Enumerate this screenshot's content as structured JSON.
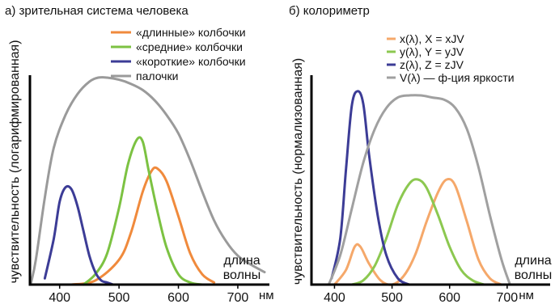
{
  "chart_data": [
    {
      "type": "line",
      "title": "а) зрительная система человека",
      "ylabel": "чувствительность (логарифмированная)",
      "xlabel": "длина волны",
      "xunit": "нм",
      "xlim": [
        350,
        790
      ],
      "ylim": [
        0,
        1
      ],
      "xticks": [
        400,
        500,
        600,
        700
      ],
      "legend_position": "top-right",
      "series": [
        {
          "name": "«длинные» колбочки",
          "color": "#f08a3c",
          "x": [
            420,
            460,
            500,
            520,
            540,
            555,
            565,
            580,
            600,
            620,
            640,
            660
          ],
          "y": [
            0,
            0.02,
            0.12,
            0.25,
            0.45,
            0.55,
            0.56,
            0.5,
            0.33,
            0.15,
            0.05,
            0.01
          ]
        },
        {
          "name": "«средние» колбочки",
          "color": "#7cc242",
          "x": [
            440,
            460,
            480,
            500,
            515,
            530,
            540,
            550,
            565,
            580,
            600,
            620,
            640
          ],
          "y": [
            0,
            0.05,
            0.15,
            0.37,
            0.58,
            0.7,
            0.69,
            0.55,
            0.35,
            0.18,
            0.05,
            0.01,
            0
          ]
        },
        {
          "name": "«короткие» колбочки",
          "color": "#3c3c96",
          "x": [
            375,
            390,
            400,
            410,
            420,
            430,
            440,
            450,
            460,
            470,
            480,
            490
          ],
          "y": [
            0.03,
            0.22,
            0.4,
            0.47,
            0.46,
            0.38,
            0.26,
            0.14,
            0.06,
            0.02,
            0.01,
            0
          ]
        },
        {
          "name": "палочки",
          "color": "#9a9a9a",
          "x": [
            352,
            360,
            375,
            390,
            410,
            430,
            450,
            465,
            480,
            500,
            520,
            540,
            560,
            580,
            600,
            620,
            640,
            660,
            680,
            700,
            720,
            745
          ],
          "y": [
            0.01,
            0.12,
            0.42,
            0.66,
            0.82,
            0.92,
            0.98,
            1.0,
            1.0,
            0.99,
            0.97,
            0.94,
            0.89,
            0.82,
            0.73,
            0.6,
            0.45,
            0.31,
            0.21,
            0.14,
            0.1,
            0.06
          ]
        }
      ]
    },
    {
      "type": "line",
      "title": "б) колориметр",
      "ylabel": "чувствительность (нормализованная)",
      "xlabel": "длина волны",
      "xunit": "нм",
      "xlim": [
        360,
        800
      ],
      "ylim": [
        0,
        1
      ],
      "xticks": [
        400,
        500,
        600,
        700
      ],
      "legend_position": "top-right",
      "series": [
        {
          "name": "x(λ), X = xJV",
          "color": "#f5a86a",
          "x": [
            400,
            420,
            435,
            445,
            460,
            480,
            500,
            520,
            540,
            560,
            580,
            595,
            610,
            630,
            650,
            670,
            690
          ],
          "y": [
            0,
            0.07,
            0.18,
            0.18,
            0.1,
            0.02,
            0.0,
            0.04,
            0.14,
            0.3,
            0.44,
            0.5,
            0.47,
            0.3,
            0.12,
            0.03,
            0
          ]
        },
        {
          "name": "y(λ), Y = yJV",
          "color": "#8cc850",
          "x": [
            430,
            450,
            470,
            490,
            510,
            530,
            545,
            560,
            580,
            600,
            620,
            640,
            660
          ],
          "y": [
            0,
            0.02,
            0.09,
            0.22,
            0.38,
            0.48,
            0.5,
            0.46,
            0.33,
            0.18,
            0.07,
            0.02,
            0
          ]
        },
        {
          "name": "z(λ), Z = zJV",
          "color": "#3c3c96",
          "x": [
            395,
            410,
            420,
            430,
            440,
            450,
            460,
            475,
            490,
            510,
            530
          ],
          "y": [
            0.03,
            0.22,
            0.55,
            0.85,
            0.92,
            0.86,
            0.62,
            0.33,
            0.14,
            0.03,
            0
          ]
        },
        {
          "name": "V(λ) — ф-ция яркости",
          "color": "#a0a0a0",
          "x": [
            390,
            410,
            430,
            450,
            470,
            490,
            510,
            530,
            550,
            570,
            590,
            610,
            630,
            650,
            670,
            690,
            705
          ],
          "y": [
            0,
            0.14,
            0.36,
            0.58,
            0.74,
            0.84,
            0.89,
            0.9,
            0.9,
            0.89,
            0.88,
            0.84,
            0.74,
            0.56,
            0.33,
            0.12,
            0
          ]
        }
      ]
    }
  ]
}
